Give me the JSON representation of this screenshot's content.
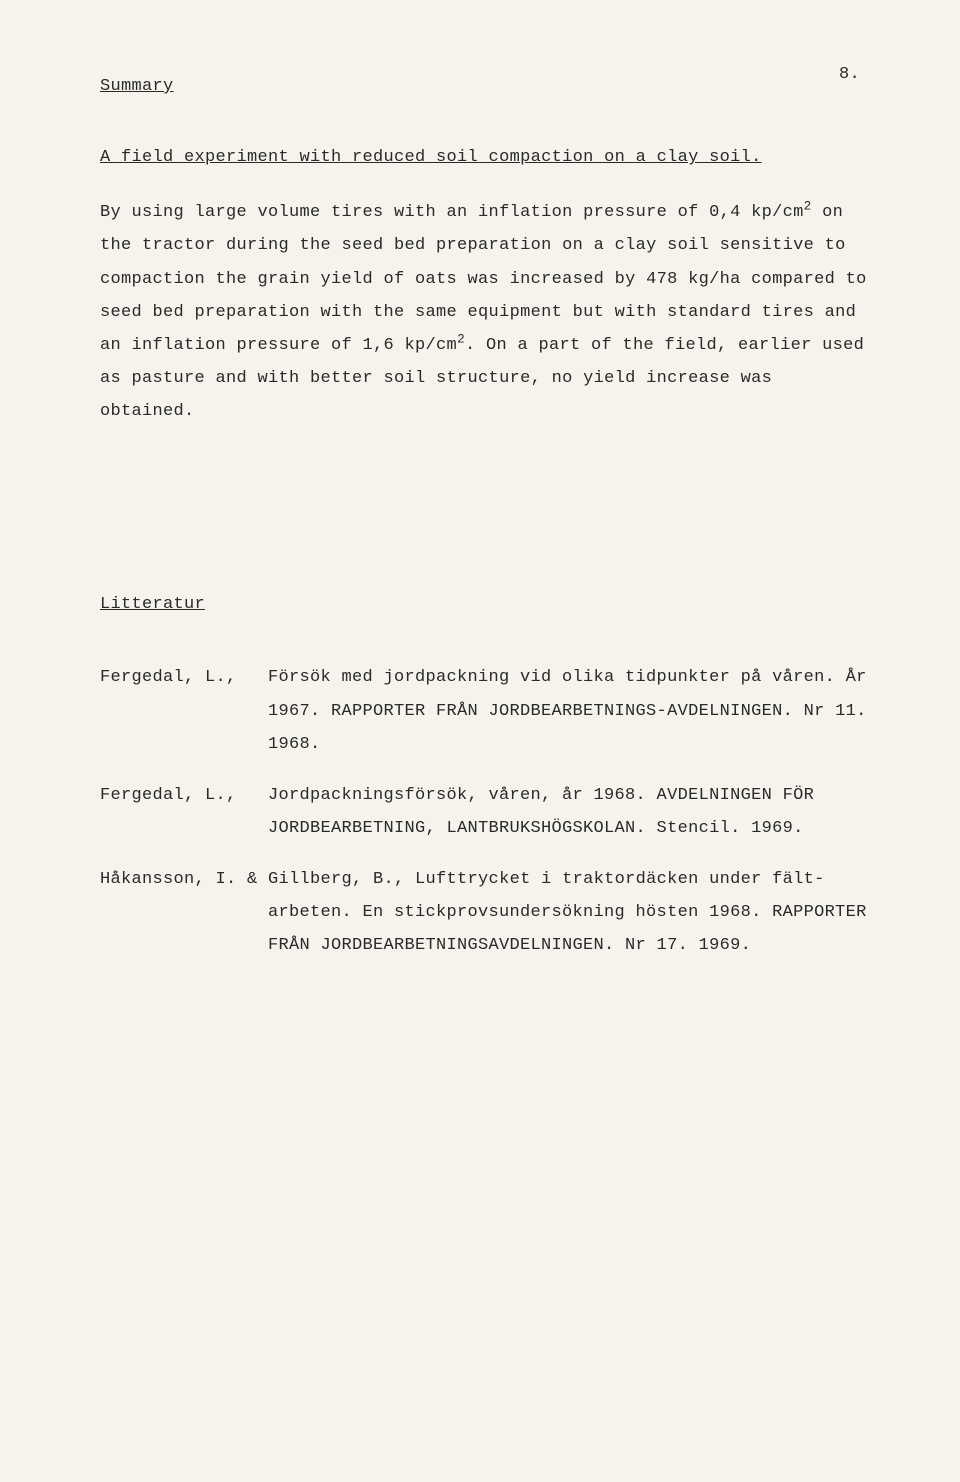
{
  "page_number": "8.",
  "summary_heading": "Summary",
  "title": "A field experiment with reduced soil compaction on a clay soil.",
  "paragraph": {
    "part1": "By using large volume tires with an inflation pressure of 0,4 kp/cm",
    "sup1": "2",
    "part2": " on the tractor during the seed bed preparation on a clay soil sensitive to compaction the grain yield of oats was increased by 478 kg/ha compared to seed bed preparation with the same equipment but with standard tires and an inflation pressure of 1,6 kp/cm",
    "sup2": "2",
    "part3": ". On a part of the field, earlier used as pasture and with better soil structure, no yield increase was obtained."
  },
  "litteratur_heading": "Litteratur",
  "references": [
    {
      "author": "Fergedal, L.,",
      "text": "Försök med jordpackning vid olika tidpunkter på våren. År 1967. RAPPORTER FRÅN JORDBEARBETNINGS-AVDELNINGEN. Nr  11. 1968."
    },
    {
      "author": "Fergedal, L.,",
      "text": "Jordpackningsförsök, våren, år 1968. AVDELNINGEN FÖR JORDBEARBETNING, LANTBRUKSHÖGSKOLAN. Stencil. 1969."
    },
    {
      "author": "",
      "text": "Håkansson, I. & Gillberg, B., Lufttrycket i traktordäcken under fält-arbeten. En stickprovsundersökning hösten 1968. RAPPORTER FRÅN JORDBEARBETNINGSAVDELNINGEN. Nr 17. 1969."
    }
  ]
}
